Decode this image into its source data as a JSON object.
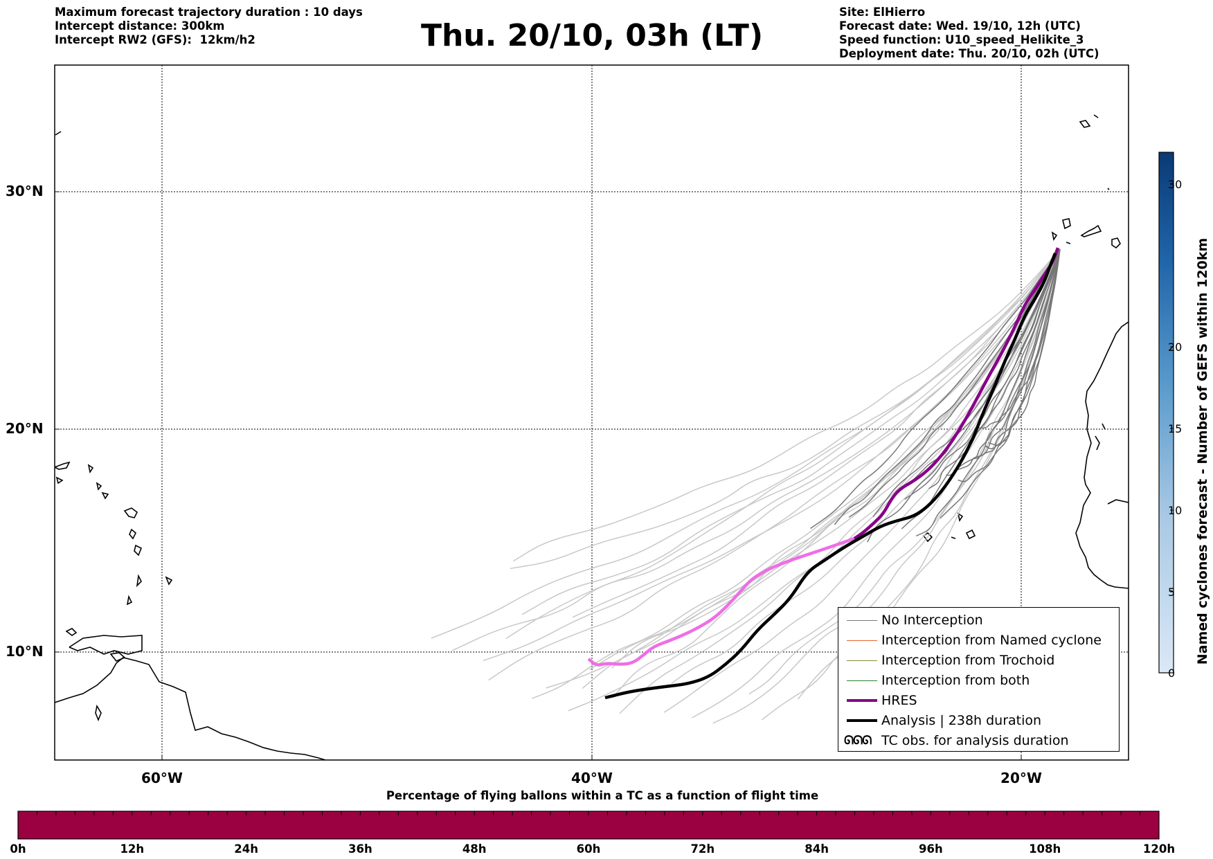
{
  "header": {
    "left_lines": [
      "Maximum forecast trajectory duration : 10 days",
      "Intercept distance: 300km",
      "Intercept RW2 (GFS):  12km/h2"
    ],
    "title": "Thu. 20/10, 03h (LT)",
    "right_lines": [
      "Site: ElHierro",
      "Forecast date: Wed. 19/10, 12h (UTC)",
      "Speed function: U10_speed_Helikite_3",
      "Deployment date: Thu. 20/10, 02h (UTC)"
    ]
  },
  "map": {
    "lat_labels": [
      "30°N",
      "20°N",
      "10°N"
    ],
    "lon_labels": [
      "60°W",
      "40°W",
      "20°W"
    ]
  },
  "legend": {
    "items": [
      {
        "label": "No Interception",
        "color": "#777777"
      },
      {
        "label": "Interception from Named cyclone",
        "color": "#e8622a"
      },
      {
        "label": "Interception from Trochoid",
        "color": "#8a8a3a"
      },
      {
        "label": "Interception from both",
        "color": "#2e7d32"
      },
      {
        "label": "HRES",
        "color": "#880088"
      },
      {
        "label": "Analysis | 238h duration",
        "color": "#000000"
      },
      {
        "label": "TC obs. for analysis duration",
        "glyph": "ᘏᘏᘏ"
      }
    ]
  },
  "colorbar_right": {
    "title": "Named cyclones forecast - Number of GEFS within 120km",
    "ticks": [
      "0",
      "5",
      "10",
      "15",
      "20",
      "30"
    ],
    "colors": [
      "#d8e6f5",
      "#0d3e7a"
    ]
  },
  "bottom_bar": {
    "title": "Percentage of flying ballons within a TC as a function of flight time",
    "time_labels": [
      "0h",
      "12h",
      "24h",
      "36h",
      "48h",
      "60h",
      "72h",
      "84h",
      "96h",
      "108h",
      "120h"
    ],
    "color": "#9b0040"
  }
}
